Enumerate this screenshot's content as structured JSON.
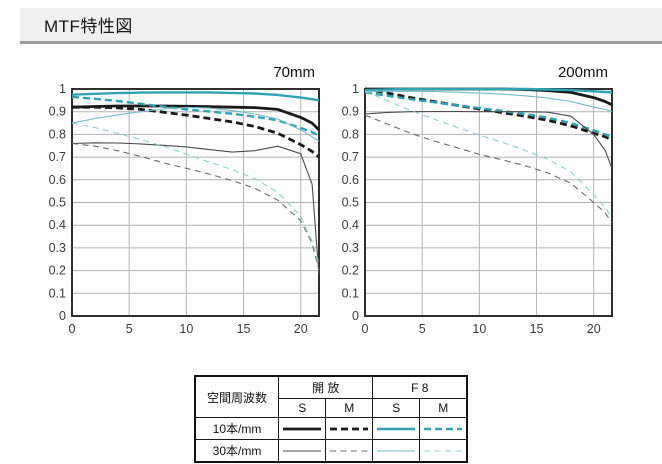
{
  "page": {
    "title": "MTF特性図"
  },
  "colors": {
    "grid": "#b3b3b3",
    "frame": "#2f2f2f",
    "black_thick": "#1a1a1a",
    "cyan_thick": "#2fa3b2",
    "gray_thin_solid": "#4c4c4c",
    "gray_thin_dashed": "#6b6b6b",
    "cyan_thin_solid": "#6fbcc7",
    "cyan_thin_dashed": "#93cdd6",
    "titlebar_bg": "#f0f0f0",
    "titlebar_border": "#9b9b9b"
  },
  "axes": {
    "x_ticks": [
      0,
      5,
      10,
      15,
      20
    ],
    "x_max": 21.6,
    "y_ticks": [
      "1",
      "0.9",
      "0.8",
      "0.7",
      "0.6",
      "0.5",
      "0.4",
      "0.3",
      "0.2",
      "0.1",
      "0"
    ]
  },
  "legend": {
    "col_header_freq": "空間周波数",
    "col_header_open": "開 放",
    "col_header_f8": "F 8",
    "sub_s": "S",
    "sub_m": "M",
    "rows": [
      {
        "label": "10本/mm"
      },
      {
        "label": "30本/mm"
      }
    ]
  },
  "chart_data": [
    {
      "type": "line",
      "title": "70mm",
      "xlabel": "",
      "ylabel": "",
      "xlim": [
        0,
        21.6
      ],
      "ylim": [
        0,
        1
      ],
      "grid": true,
      "x": [
        0,
        2,
        4,
        6,
        8,
        10,
        12,
        14,
        16,
        18,
        20,
        21,
        21.6
      ],
      "series": [
        {
          "key": "open_10_S",
          "name": "開放 10本/mm S",
          "color": "#1a1a1a",
          "width": 2.8,
          "dash": "",
          "values": [
            0.92,
            0.923,
            0.925,
            0.925,
            0.925,
            0.924,
            0.922,
            0.92,
            0.918,
            0.91,
            0.875,
            0.85,
            0.82
          ]
        },
        {
          "key": "open_10_M",
          "name": "開放 10本/mm M",
          "color": "#1a1a1a",
          "width": 2.8,
          "dash": "7 4",
          "values": [
            0.92,
            0.92,
            0.917,
            0.91,
            0.898,
            0.885,
            0.87,
            0.855,
            0.835,
            0.805,
            0.755,
            0.725,
            0.7
          ]
        },
        {
          "key": "f8_10_S",
          "name": "F8 10本/mm S",
          "color": "#2fa3b2",
          "width": 2.4,
          "dash": "",
          "values": [
            0.975,
            0.979,
            0.982,
            0.984,
            0.985,
            0.985,
            0.985,
            0.983,
            0.98,
            0.974,
            0.962,
            0.955,
            0.95
          ]
        },
        {
          "key": "f8_10_M",
          "name": "F8 10本/mm M",
          "color": "#2fa3b2",
          "width": 2.4,
          "dash": "7 4",
          "values": [
            0.965,
            0.957,
            0.947,
            0.935,
            0.922,
            0.91,
            0.901,
            0.891,
            0.878,
            0.862,
            0.828,
            0.81,
            0.795
          ]
        },
        {
          "key": "open_30_S",
          "name": "開放 30本/mm S",
          "color": "#4c4c4c",
          "width": 1.1,
          "dash": "",
          "values": [
            0.76,
            0.763,
            0.762,
            0.758,
            0.752,
            0.745,
            0.733,
            0.722,
            0.728,
            0.748,
            0.715,
            0.58,
            0.18
          ]
        },
        {
          "key": "open_30_M",
          "name": "開放 30本/mm M",
          "color": "#6b6b6b",
          "width": 1.1,
          "dash": "6 4.5",
          "values": [
            0.76,
            0.748,
            0.728,
            0.703,
            0.675,
            0.65,
            0.625,
            0.597,
            0.562,
            0.51,
            0.42,
            0.32,
            0.2
          ]
        },
        {
          "key": "f8_30_S",
          "name": "F8 30本/mm S",
          "color": "#6fbcc7",
          "width": 1.1,
          "dash": "",
          "values": [
            0.85,
            0.87,
            0.886,
            0.9,
            0.912,
            0.919,
            0.916,
            0.905,
            0.89,
            0.868,
            0.82,
            0.79,
            0.77
          ]
        },
        {
          "key": "f8_30_M",
          "name": "F8 30本/mm M",
          "color": "#93cdd6",
          "width": 1.1,
          "dash": "6 4.5",
          "values": [
            0.85,
            0.83,
            0.805,
            0.777,
            0.748,
            0.713,
            0.678,
            0.645,
            0.605,
            0.545,
            0.44,
            0.33,
            0.23
          ]
        }
      ]
    },
    {
      "type": "line",
      "title": "200mm",
      "xlabel": "",
      "ylabel": "",
      "xlim": [
        0,
        21.6
      ],
      "ylim": [
        0,
        1
      ],
      "grid": true,
      "x": [
        0,
        2,
        4,
        6,
        8,
        10,
        12,
        14,
        16,
        18,
        20,
        21,
        21.6
      ],
      "series": [
        {
          "key": "open_10_S",
          "name": "開放 10本/mm S",
          "color": "#1a1a1a",
          "width": 2.8,
          "dash": "",
          "values": [
            1.0,
            1.0,
            1.0,
            1.0,
            1.0,
            1.0,
            1.0,
            0.998,
            0.993,
            0.985,
            0.962,
            0.945,
            0.93
          ]
        },
        {
          "key": "open_10_M",
          "name": "開放 10本/mm M",
          "color": "#1a1a1a",
          "width": 2.8,
          "dash": "7 4",
          "values": [
            1.0,
            0.982,
            0.962,
            0.945,
            0.928,
            0.912,
            0.896,
            0.88,
            0.862,
            0.838,
            0.805,
            0.79,
            0.775
          ]
        },
        {
          "key": "f8_10_S",
          "name": "F8 10本/mm S",
          "color": "#2fa3b2",
          "width": 2.4,
          "dash": "",
          "values": [
            0.995,
            0.998,
            1.0,
            1.0,
            1.0,
            1.0,
            1.0,
            1.0,
            0.998,
            0.995,
            0.99,
            0.987,
            0.985
          ]
        },
        {
          "key": "f8_10_M",
          "name": "F8 10本/mm M",
          "color": "#2fa3b2",
          "width": 2.4,
          "dash": "7 4",
          "values": [
            0.985,
            0.97,
            0.955,
            0.942,
            0.928,
            0.916,
            0.903,
            0.89,
            0.873,
            0.85,
            0.818,
            0.8,
            0.785
          ]
        },
        {
          "key": "open_30_S",
          "name": "開放 30本/mm S",
          "color": "#4c4c4c",
          "width": 1.1,
          "dash": "",
          "values": [
            0.89,
            0.897,
            0.9,
            0.901,
            0.901,
            0.9,
            0.9,
            0.9,
            0.898,
            0.88,
            0.8,
            0.73,
            0.65
          ]
        },
        {
          "key": "open_30_M",
          "name": "開放 30本/mm M",
          "color": "#6b6b6b",
          "width": 1.1,
          "dash": "6 4.5",
          "values": [
            0.885,
            0.845,
            0.805,
            0.772,
            0.742,
            0.712,
            0.688,
            0.662,
            0.63,
            0.585,
            0.5,
            0.455,
            0.41
          ]
        },
        {
          "key": "f8_30_S",
          "name": "F8 30本/mm S",
          "color": "#6fbcc7",
          "width": 1.1,
          "dash": "",
          "values": [
            0.99,
            0.99,
            0.99,
            0.989,
            0.986,
            0.982,
            0.977,
            0.97,
            0.96,
            0.945,
            0.92,
            0.91,
            0.9
          ]
        },
        {
          "key": "f8_30_M",
          "name": "F8 30本/mm M",
          "color": "#93cdd6",
          "width": 1.1,
          "dash": "6 4.5",
          "values": [
            0.99,
            0.948,
            0.905,
            0.868,
            0.832,
            0.797,
            0.765,
            0.73,
            0.69,
            0.635,
            0.535,
            0.48,
            0.43
          ]
        }
      ]
    }
  ]
}
